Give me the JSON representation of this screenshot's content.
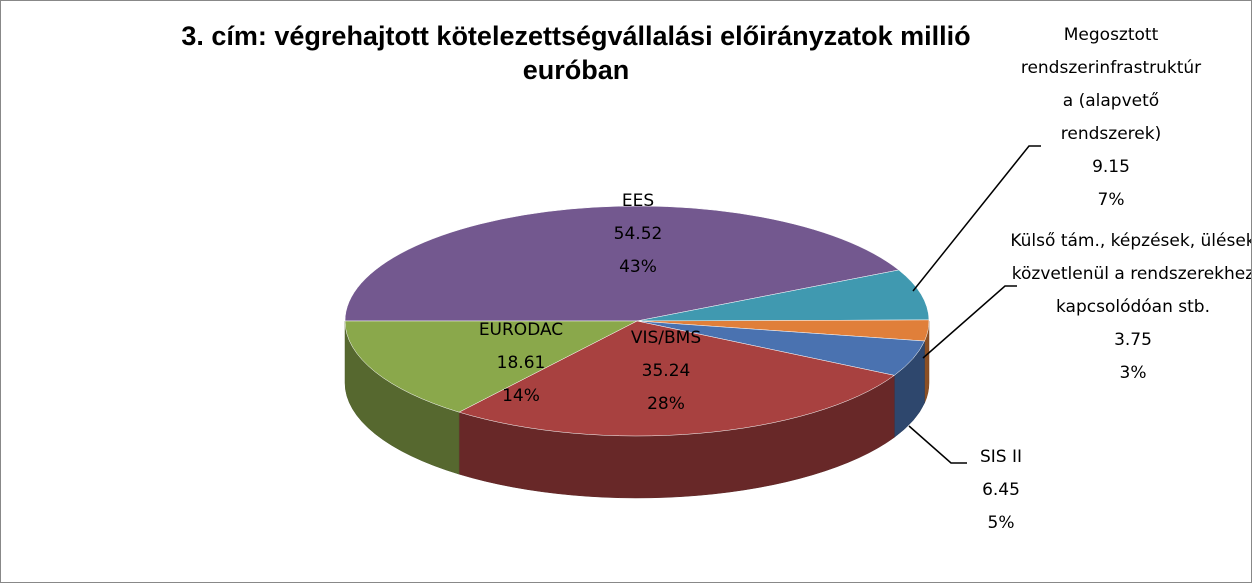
{
  "chart_data": {
    "type": "pie",
    "title": "3. cím: végrehajtott kötelezettségvállalási előirányzatok millió euróban",
    "categories": [
      "EES",
      "Megosztott rendszerinfrastruktúra (alapvető rendszerek)",
      "Külső tám., képzések, ülések közvetlenül a rendszerekhez kapcsolódóan stb.",
      "SIS II",
      "VIS/BMS",
      "EURODAC"
    ],
    "values": [
      54.52,
      9.15,
      3.75,
      6.45,
      35.24,
      18.61
    ],
    "percent_labels": [
      "43%",
      "7%",
      "3%",
      "5%",
      "28%",
      "14%"
    ],
    "colors": [
      "#73588f",
      "#4099b0",
      "#e07f3a",
      "#4a72b0",
      "#a84140",
      "#8aa84b"
    ]
  }
}
